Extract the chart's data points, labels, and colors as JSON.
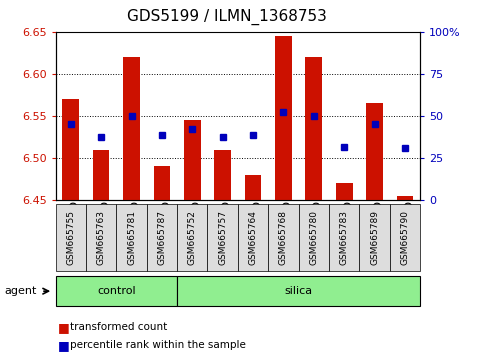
{
  "title": "GDS5199 / ILMN_1368753",
  "samples": [
    "GSM665755",
    "GSM665763",
    "GSM665781",
    "GSM665787",
    "GSM665752",
    "GSM665757",
    "GSM665764",
    "GSM665768",
    "GSM665780",
    "GSM665783",
    "GSM665789",
    "GSM665790"
  ],
  "groups": [
    "control",
    "control",
    "control",
    "control",
    "silica",
    "silica",
    "silica",
    "silica",
    "silica",
    "silica",
    "silica",
    "silica"
  ],
  "bar_values": [
    6.57,
    6.51,
    6.62,
    6.49,
    6.545,
    6.51,
    6.48,
    6.645,
    6.62,
    6.47,
    6.565,
    6.455
  ],
  "dot_values": [
    6.54,
    6.525,
    6.55,
    6.527,
    6.535,
    6.525,
    6.527,
    6.555,
    6.55,
    6.513,
    6.54,
    6.512
  ],
  "bar_bottom": 6.45,
  "ylim": [
    6.45,
    6.65
  ],
  "yticks": [
    6.45,
    6.5,
    6.55,
    6.6,
    6.65
  ],
  "right_yticks_pct": [
    0,
    25,
    50,
    75,
    100
  ],
  "right_ytick_labels": [
    "0",
    "25",
    "50",
    "75",
    "100%"
  ],
  "bar_color": "#cc1100",
  "dot_color": "#0000bb",
  "background_color": "#ffffff",
  "left_tick_color": "#cc1100",
  "right_tick_color": "#0000bb",
  "control_color": "#90ee90",
  "silica_color": "#90ee90",
  "legend_bar_label": "transformed count",
  "legend_dot_label": "percentile rank within the sample",
  "title_fontsize": 11,
  "tick_fontsize": 8,
  "label_fontsize": 8,
  "bar_width": 0.55,
  "dotsize": 5,
  "n_control": 4,
  "n_silica": 8
}
